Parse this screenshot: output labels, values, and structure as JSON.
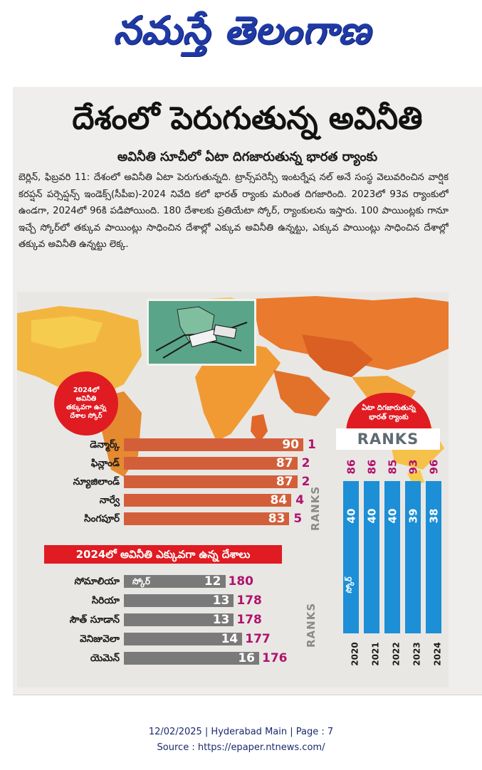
{
  "masthead": {
    "logo_text": "నమస్తే తెలంగాణ"
  },
  "article": {
    "headline": "దేశంలో పెరుగుతున్న అవినీతి",
    "subhead": "అవినీతి సూచీలో ఏటా దిగజారుతున్న భారత ర్యాంకు",
    "body": "బెర్లిన్, ఫిబ్రవరి 11: దేశంలో అవినీతి ఏటా పెరుగుతున్నది. ట్రాన్స్‌పరెన్సీ ఇంటర్నేష నల్ అనే సంస్థ వెలువరించిన వార్షిక కరప్షన్ పర్సెప్షన్స్ ఇండెక్స్(సీపీఐ)-2024 నివేది కలో భారత్ ర్యాంకు మరింత దిగజారింది. 2023లో 93వ ర్యాంకులో ఉండగా, 2024లో 96కి పడిపోయింది. 180 దేశాలకు ప్రతియేటా స్కోర్, ర్యాంకులను ఇస్తారు. 100 పాయింట్లకు గానూ ఇచ్చే స్కోర్‌లో తక్కువ పాయింట్లు సాధించిన దేశాల్లో ఎక్కువ అవినీతి ఉన్నట్టు, ఎక్కువ పాయింట్లు సాధించిన దేశాల్లో తక్కువ అవినీతి ఉన్నట్టు లెక్క."
  },
  "graphic": {
    "least_callout": [
      "2024లో",
      "అవినీతి",
      "తక్కువగా ఉన్న",
      "దేశాల స్కోర్"
    ],
    "ranks_vertical_label": "RANKS",
    "worst_banner": "2024లో అవినీతి ఎక్కువగా ఉన్న దేశాలు",
    "score_label": "స్కోర్",
    "india_callout": [
      "ఏటా దిగజారుతున్న",
      "భారత్ ర్యాంకు"
    ],
    "india_ranks_title": "RANKS",
    "india_score_label": "స్కోర్"
  },
  "colors": {
    "least_bar": "#d35f3a",
    "worst_bar": "#7a7a7a",
    "india_bar": "#1c8fd6",
    "rank_text": "#b0136d",
    "callout": "#e01b22"
  },
  "chart_data": [
    {
      "type": "bar",
      "categories": [
        "డెన్మార్క్",
        "ఫిన్లాండ్",
        "న్యూజిలాండ్",
        "నార్వే",
        "సింగపూర్"
      ],
      "series": [
        {
          "values": [
            90,
            87,
            87,
            84,
            83
          ]
        },
        {
          "values": [
            1,
            2,
            2,
            4,
            5
          ]
        }
      ],
      "xlim": [
        0,
        100
      ]
    },
    {
      "type": "bar",
      "categories": [
        "సోమాలియా",
        "సిరియా",
        "సౌత్ సూడాన్",
        "వెనిజువెలా",
        "యెమెన్"
      ],
      "series": [
        {
          "values": [
            12,
            13,
            13,
            14,
            16
          ]
        },
        {
          "values": [
            180,
            178,
            178,
            177,
            176
          ]
        }
      ],
      "xlim": [
        0,
        100
      ]
    },
    {
      "type": "bar",
      "categories": [
        "2020",
        "2021",
        "2022",
        "2023",
        "2024"
      ],
      "series": [
        {
          "values": [
            40,
            40,
            40,
            39,
            38
          ]
        },
        {
          "values": [
            86,
            86,
            85,
            93,
            96
          ]
        }
      ]
    }
  ],
  "footer": {
    "line1": "12/02/2025 | Hyderabad Main | Page : 7",
    "line2": "Source : https://epaper.ntnews.com/"
  }
}
